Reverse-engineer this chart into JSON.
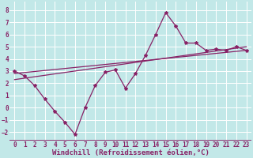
{
  "title": "",
  "xlabel": "Windchill (Refroidissement éolien,°C)",
  "ylabel": "",
  "background_color": "#c2e8e8",
  "grid_color": "#ffffff",
  "line_color": "#882266",
  "xlim": [
    -0.5,
    23.5
  ],
  "ylim": [
    -2.7,
    8.7
  ],
  "xticks": [
    0,
    1,
    2,
    3,
    4,
    5,
    6,
    7,
    8,
    9,
    10,
    11,
    12,
    13,
    14,
    15,
    16,
    17,
    18,
    19,
    20,
    21,
    22,
    23
  ],
  "yticks": [
    -2,
    -1,
    0,
    1,
    2,
    3,
    4,
    5,
    6,
    7,
    8
  ],
  "series1_x": [
    0,
    1,
    2,
    3,
    4,
    5,
    6,
    7,
    8,
    9,
    10,
    11,
    12,
    13,
    14,
    15,
    16,
    17,
    18,
    19,
    20,
    21,
    22,
    23
  ],
  "series1_y": [
    3.0,
    2.6,
    1.8,
    0.7,
    -0.3,
    -1.2,
    -2.2,
    0.0,
    1.8,
    2.9,
    3.1,
    1.6,
    2.8,
    4.3,
    6.0,
    7.8,
    6.7,
    5.3,
    5.3,
    4.7,
    4.8,
    4.7,
    5.0,
    4.7
  ],
  "series2_x": [
    0,
    23
  ],
  "series2_y": [
    2.8,
    4.7
  ],
  "series3_x": [
    0,
    23
  ],
  "series3_y": [
    2.3,
    5.0
  ],
  "font_family": "monospace",
  "tick_fontsize": 5.5,
  "label_fontsize": 6.5
}
